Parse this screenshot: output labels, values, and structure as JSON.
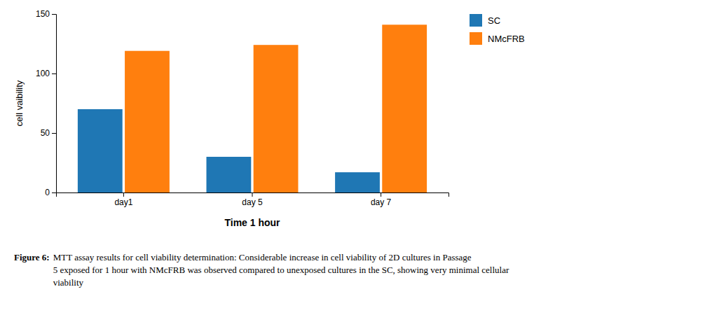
{
  "chart_data": {
    "type": "bar",
    "categories": [
      "day1",
      "day 5",
      "day 7"
    ],
    "series": [
      {
        "name": "SC",
        "values": [
          70,
          30,
          17
        ]
      },
      {
        "name": "NMcFRB",
        "values": [
          119,
          124,
          141
        ]
      }
    ],
    "xlabel": "Time 1 hour",
    "ylabel": "cell vaibility",
    "ylim": [
      0,
      150
    ],
    "yticks": [
      0,
      50,
      100,
      150
    ],
    "grid": false,
    "legend": "upper right",
    "annotations": [
      "Figure 6:",
      "MTT assay results for cell viability determination: Considerable increase in cell viability of 2D cultures in Passage\n5 exposed for 1 hour with NMcFRB was observed compared to unexposed cultures in the SC, showing very minimal cellular\nviability"
    ]
  }
}
